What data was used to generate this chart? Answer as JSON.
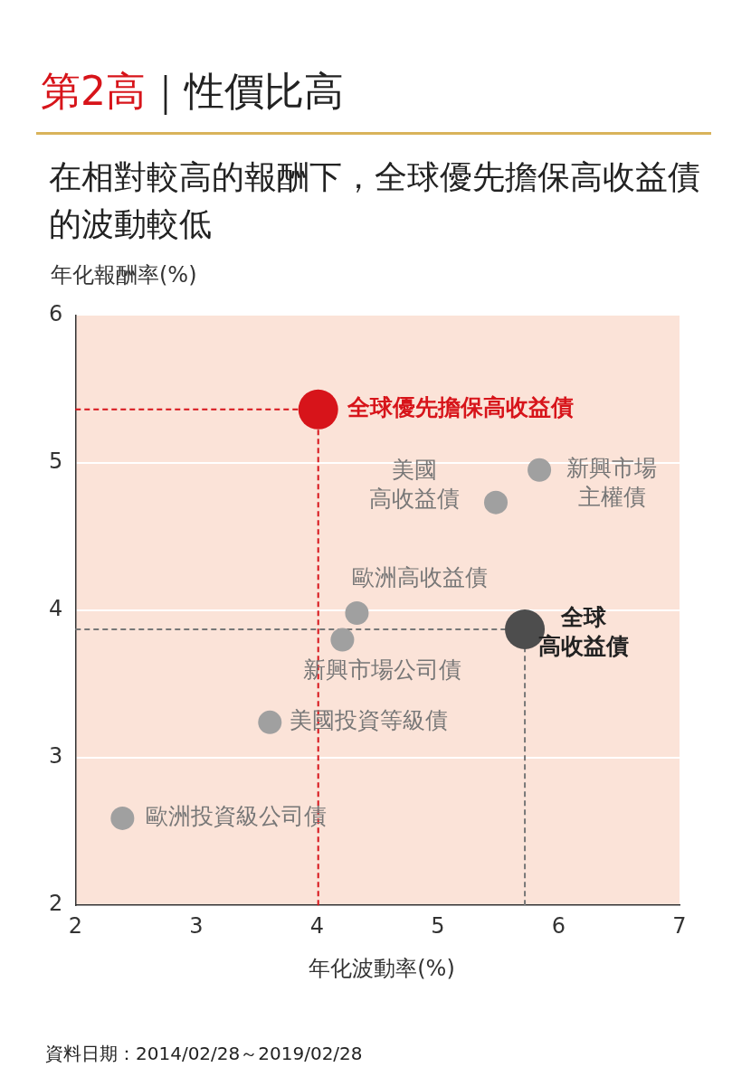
{
  "chart_data": {
    "type": "bubble",
    "title": "第2高｜性價比高",
    "subtitle": "在相對較高的報酬下，全球優先擔保高收益債的波動較低",
    "xlabel": "年化波動率(%)",
    "ylabel": "年化報酬率(%)",
    "xlim": [
      2,
      7
    ],
    "xticks": [
      2,
      3,
      4,
      5,
      6,
      7
    ],
    "ylim": [
      2,
      6
    ],
    "yticks": [
      2,
      3,
      4,
      5,
      6
    ],
    "grid": "y",
    "legend": false,
    "series": [
      {
        "name": "全球優先擔保高收益債",
        "color": "#d7141a",
        "x": [
          4.01
        ],
        "values": [
          5.36
        ],
        "sizes": [
          1
        ]
      },
      {
        "name": "全球高收益債",
        "color": "#4d4d4d",
        "x": [
          5.72
        ],
        "values": [
          3.87
        ],
        "sizes": [
          1
        ]
      },
      {
        "name": "美國高收益債",
        "color": "#a0a0a0",
        "x": [
          5.48
        ],
        "values": [
          4.73
        ],
        "sizes": [
          0.35
        ]
      },
      {
        "name": "新興市場主權債",
        "color": "#a0a0a0",
        "x": [
          5.84
        ],
        "values": [
          4.95
        ],
        "sizes": [
          0.35
        ]
      },
      {
        "name": "歐洲高收益債",
        "color": "#a0a0a0",
        "x": [
          4.33
        ],
        "values": [
          3.98
        ],
        "sizes": [
          0.35
        ]
      },
      {
        "name": "新興市場公司債",
        "color": "#a0a0a0",
        "x": [
          4.21
        ],
        "values": [
          3.8
        ],
        "sizes": [
          0.35
        ]
      },
      {
        "name": "美國投資等級債",
        "color": "#a0a0a0",
        "x": [
          3.61
        ],
        "values": [
          3.24
        ],
        "sizes": [
          0.35
        ]
      },
      {
        "name": "歐洲投資級公司債",
        "color": "#a0a0a0",
        "x": [
          2.39
        ],
        "values": [
          2.59
        ],
        "sizes": [
          0.35
        ]
      }
    ],
    "ref_lines": [
      {
        "axis": "x",
        "value": 4.01,
        "color": "#d7141a",
        "line_style": "dashed"
      },
      {
        "axis": "y",
        "value": 5.36,
        "color": "#d7141a",
        "line_style": "dashed"
      },
      {
        "axis": "x",
        "value": 5.72,
        "color": "#777777",
        "line_style": "dashed"
      },
      {
        "axis": "y",
        "value": 3.87,
        "color": "#777777",
        "line_style": "dashed"
      }
    ],
    "annotations": [
      "資料日期：2014/02/28～2019/02/28"
    ]
  }
}
